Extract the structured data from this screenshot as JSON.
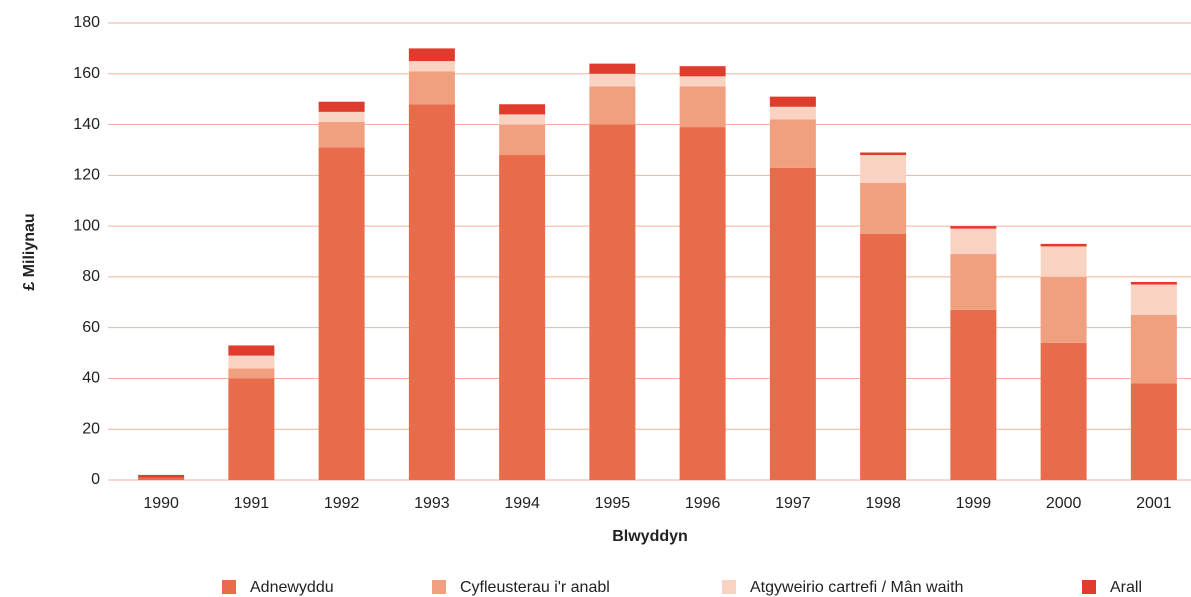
{
  "chart_data": {
    "type": "stacked_bar",
    "x_label": "Blwyddyn",
    "y_label": "£ Miliynau",
    "categories": [
      "1990",
      "1991",
      "1992",
      "1993",
      "1994",
      "1995",
      "1996",
      "1997",
      "1998",
      "1999",
      "2000",
      "2001"
    ],
    "series": [
      {
        "name": "Adnewyddu",
        "color": "#e86c4b",
        "values": [
          1,
          40,
          131,
          148,
          128,
          140,
          139,
          123,
          97,
          67,
          54,
          38
        ]
      },
      {
        "name": "Cyfleusterau i'r anabl",
        "color": "#f0a07f",
        "values": [
          0,
          4,
          10,
          13,
          12,
          15,
          16,
          19,
          20,
          22,
          26,
          27
        ]
      },
      {
        "name": "Atgyweirio cartrefi / Mân waith",
        "color": "#f9d3c2",
        "values": [
          0,
          5,
          4,
          4,
          4,
          5,
          4,
          5,
          11,
          10,
          12,
          12
        ]
      },
      {
        "name": "Arall",
        "color": "#e03c2e",
        "values": [
          1,
          4,
          4,
          5,
          4,
          4,
          4,
          4,
          1,
          1,
          1,
          1
        ]
      }
    ],
    "ylim": [
      0,
      180
    ],
    "yticks": [
      0,
      20,
      40,
      60,
      80,
      100,
      120,
      140,
      160,
      180
    ],
    "grid": true
  }
}
